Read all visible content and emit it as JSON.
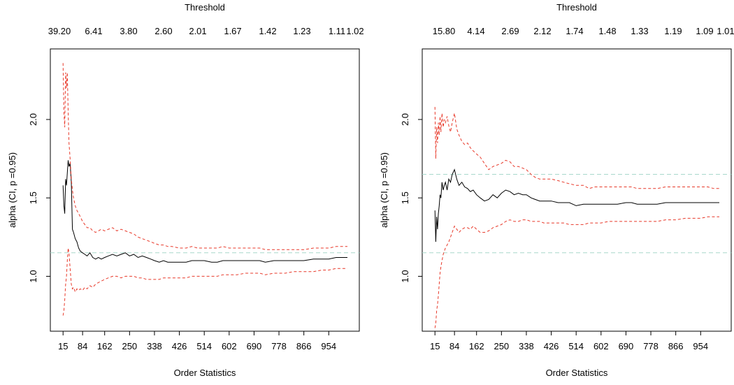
{
  "chart_data": [
    {
      "type": "line",
      "xlabel": "Order Statistics",
      "ylabel": "alpha (CI, p =0.95)",
      "top_axis_title": "Threshold",
      "x_ticks": [
        "15",
        "84",
        "162",
        "250",
        "338",
        "426",
        "514",
        "602",
        "690",
        "778",
        "866",
        "954"
      ],
      "top_ticks": [
        "39.20",
        "6.41",
        "3.80",
        "2.60",
        "2.01",
        "1.67",
        "1.42",
        "1.23",
        "1.11",
        "1.02"
      ],
      "y_ticks": [
        "1.0",
        "1.5",
        "2.0"
      ],
      "xlim": [
        -30,
        1062
      ],
      "ylim": [
        0.65,
        2.45
      ],
      "reference_lines": [
        1.15
      ],
      "series": [
        {
          "role": "estimate",
          "color": "#000000",
          "style": "solid",
          "x": [
            15,
            18,
            21,
            24,
            27,
            30,
            33,
            36,
            40,
            44,
            48,
            52,
            58,
            64,
            70,
            76,
            84,
            92,
            100,
            110,
            120,
            130,
            140,
            150,
            162,
            175,
            190,
            205,
            220,
            235,
            250,
            265,
            280,
            295,
            310,
            325,
            338,
            355,
            370,
            385,
            400,
            426,
            450,
            470,
            490,
            514,
            540,
            560,
            580,
            602,
            630,
            660,
            690,
            710,
            730,
            760,
            778,
            800,
            830,
            866,
            900,
            930,
            954,
            980,
            1000,
            1020
          ],
          "y": [
            1.58,
            1.45,
            1.4,
            1.62,
            1.58,
            1.66,
            1.74,
            1.7,
            1.72,
            1.6,
            1.3,
            1.28,
            1.24,
            1.22,
            1.18,
            1.16,
            1.15,
            1.14,
            1.13,
            1.15,
            1.12,
            1.11,
            1.12,
            1.11,
            1.12,
            1.13,
            1.14,
            1.13,
            1.14,
            1.15,
            1.13,
            1.14,
            1.12,
            1.13,
            1.12,
            1.11,
            1.1,
            1.09,
            1.1,
            1.09,
            1.09,
            1.09,
            1.09,
            1.1,
            1.1,
            1.1,
            1.09,
            1.09,
            1.1,
            1.1,
            1.1,
            1.1,
            1.1,
            1.1,
            1.09,
            1.1,
            1.1,
            1.1,
            1.1,
            1.1,
            1.11,
            1.11,
            1.11,
            1.12,
            1.12,
            1.12
          ]
        },
        {
          "role": "upper_ci",
          "color": "#e8392a",
          "style": "dashed",
          "x": [
            15,
            18,
            21,
            24,
            27,
            30,
            33,
            36,
            40,
            44,
            48,
            52,
            58,
            64,
            70,
            76,
            84,
            92,
            100,
            110,
            120,
            130,
            140,
            150,
            162,
            175,
            190,
            205,
            220,
            235,
            250,
            265,
            280,
            295,
            310,
            325,
            338,
            355,
            370,
            385,
            400,
            426,
            450,
            470,
            490,
            514,
            540,
            560,
            580,
            602,
            630,
            660,
            690,
            710,
            730,
            760,
            778,
            800,
            830,
            866,
            900,
            930,
            954,
            980,
            1000,
            1020
          ],
          "y": [
            2.36,
            2.05,
            1.95,
            2.3,
            2.2,
            2.3,
            2.05,
            1.85,
            1.75,
            1.62,
            1.55,
            1.5,
            1.45,
            1.42,
            1.4,
            1.38,
            1.35,
            1.33,
            1.31,
            1.31,
            1.29,
            1.28,
            1.29,
            1.3,
            1.29,
            1.3,
            1.31,
            1.29,
            1.3,
            1.29,
            1.28,
            1.27,
            1.25,
            1.24,
            1.23,
            1.22,
            1.21,
            1.2,
            1.2,
            1.19,
            1.19,
            1.18,
            1.18,
            1.19,
            1.18,
            1.18,
            1.18,
            1.18,
            1.19,
            1.18,
            1.18,
            1.18,
            1.18,
            1.18,
            1.17,
            1.17,
            1.17,
            1.17,
            1.17,
            1.17,
            1.18,
            1.18,
            1.18,
            1.19,
            1.19,
            1.19
          ]
        },
        {
          "role": "lower_ci",
          "color": "#e8392a",
          "style": "dashed",
          "x": [
            15,
            18,
            21,
            24,
            27,
            30,
            33,
            36,
            40,
            44,
            48,
            52,
            58,
            64,
            70,
            76,
            84,
            92,
            100,
            110,
            120,
            130,
            140,
            150,
            162,
            175,
            190,
            205,
            220,
            235,
            250,
            265,
            280,
            295,
            310,
            325,
            338,
            355,
            370,
            385,
            400,
            426,
            450,
            470,
            490,
            514,
            540,
            560,
            580,
            602,
            630,
            660,
            690,
            710,
            730,
            760,
            778,
            800,
            830,
            866,
            900,
            930,
            954,
            980,
            1000,
            1020
          ],
          "y": [
            0.75,
            0.78,
            0.85,
            0.95,
            1.0,
            1.1,
            1.18,
            1.15,
            1.05,
            0.95,
            0.92,
            0.93,
            0.9,
            0.92,
            0.91,
            0.92,
            0.91,
            0.93,
            0.92,
            0.94,
            0.93,
            0.95,
            0.96,
            0.97,
            0.98,
            0.99,
            1.0,
            1.0,
            0.99,
            1.0,
            1.0,
            1.0,
            0.99,
            0.99,
            0.98,
            0.98,
            0.98,
            0.98,
            0.99,
            0.99,
            0.99,
            0.99,
            0.99,
            1.0,
            1.0,
            1.0,
            1.0,
            1.0,
            1.01,
            1.01,
            1.01,
            1.02,
            1.02,
            1.02,
            1.01,
            1.02,
            1.02,
            1.02,
            1.03,
            1.03,
            1.03,
            1.04,
            1.04,
            1.05,
            1.05,
            1.05
          ]
        }
      ]
    },
    {
      "type": "line",
      "xlabel": "Order Statistics",
      "ylabel": "alpha (CI, p =0.95)",
      "top_axis_title": "Threshold",
      "x_ticks": [
        "15",
        "84",
        "162",
        "250",
        "338",
        "426",
        "514",
        "602",
        "690",
        "778",
        "866",
        "954"
      ],
      "top_ticks": [
        "15.80",
        "4.14",
        "2.69",
        "2.12",
        "1.74",
        "1.48",
        "1.33",
        "1.19",
        "1.09",
        "1.01"
      ],
      "y_ticks": [
        "1.0",
        "1.5",
        "2.0"
      ],
      "xlim": [
        -30,
        1062
      ],
      "ylim": [
        0.65,
        2.45
      ],
      "reference_lines": [
        1.15,
        1.65
      ],
      "series": [
        {
          "role": "estimate",
          "color": "#000000",
          "style": "solid",
          "x": [
            15,
            18,
            21,
            24,
            27,
            30,
            33,
            36,
            40,
            44,
            48,
            52,
            58,
            64,
            70,
            76,
            84,
            92,
            100,
            110,
            120,
            130,
            140,
            150,
            162,
            175,
            190,
            205,
            220,
            235,
            250,
            265,
            280,
            295,
            310,
            325,
            338,
            355,
            370,
            385,
            400,
            426,
            450,
            470,
            490,
            514,
            540,
            560,
            580,
            602,
            630,
            660,
            690,
            710,
            730,
            760,
            778,
            800,
            830,
            866,
            900,
            930,
            954,
            980,
            1000,
            1020
          ],
          "y": [
            1.42,
            1.22,
            1.38,
            1.3,
            1.4,
            1.45,
            1.52,
            1.5,
            1.6,
            1.55,
            1.58,
            1.6,
            1.55,
            1.62,
            1.6,
            1.65,
            1.68,
            1.62,
            1.58,
            1.6,
            1.57,
            1.56,
            1.54,
            1.55,
            1.52,
            1.5,
            1.48,
            1.49,
            1.52,
            1.5,
            1.53,
            1.55,
            1.54,
            1.52,
            1.53,
            1.52,
            1.52,
            1.5,
            1.49,
            1.48,
            1.48,
            1.48,
            1.47,
            1.47,
            1.47,
            1.45,
            1.46,
            1.46,
            1.46,
            1.46,
            1.46,
            1.46,
            1.47,
            1.47,
            1.46,
            1.46,
            1.46,
            1.46,
            1.47,
            1.47,
            1.47,
            1.47,
            1.47,
            1.47,
            1.47,
            1.47
          ]
        },
        {
          "role": "upper_ci",
          "color": "#e8392a",
          "style": "dashed",
          "x": [
            15,
            18,
            21,
            24,
            27,
            30,
            33,
            36,
            40,
            44,
            48,
            52,
            58,
            64,
            70,
            76,
            84,
            92,
            100,
            110,
            120,
            130,
            140,
            150,
            162,
            175,
            190,
            205,
            220,
            235,
            250,
            265,
            280,
            295,
            310,
            325,
            338,
            355,
            370,
            385,
            400,
            426,
            450,
            470,
            490,
            514,
            540,
            560,
            580,
            602,
            630,
            660,
            690,
            710,
            730,
            760,
            778,
            800,
            830,
            866,
            900,
            930,
            954,
            980,
            1000,
            1020
          ],
          "y": [
            2.08,
            1.75,
            1.95,
            1.85,
            1.98,
            1.9,
            2.02,
            1.92,
            2.04,
            1.95,
            2.0,
            1.98,
            2.02,
            1.96,
            1.92,
            1.98,
            2.04,
            1.94,
            1.9,
            1.86,
            1.84,
            1.85,
            1.82,
            1.8,
            1.78,
            1.76,
            1.72,
            1.68,
            1.7,
            1.71,
            1.72,
            1.74,
            1.73,
            1.7,
            1.7,
            1.69,
            1.68,
            1.65,
            1.63,
            1.62,
            1.62,
            1.62,
            1.61,
            1.6,
            1.59,
            1.58,
            1.58,
            1.56,
            1.57,
            1.57,
            1.57,
            1.57,
            1.57,
            1.57,
            1.56,
            1.56,
            1.56,
            1.56,
            1.57,
            1.57,
            1.57,
            1.57,
            1.57,
            1.57,
            1.56,
            1.56
          ]
        },
        {
          "role": "lower_ci",
          "color": "#e8392a",
          "style": "dashed",
          "x": [
            15,
            18,
            21,
            24,
            27,
            30,
            33,
            36,
            40,
            44,
            48,
            52,
            58,
            64,
            70,
            76,
            84,
            92,
            100,
            110,
            120,
            130,
            140,
            150,
            162,
            175,
            190,
            205,
            220,
            235,
            250,
            265,
            280,
            295,
            310,
            325,
            338,
            355,
            370,
            385,
            400,
            426,
            450,
            470,
            490,
            514,
            540,
            560,
            580,
            602,
            630,
            660,
            690,
            710,
            730,
            760,
            778,
            800,
            830,
            866,
            900,
            930,
            954,
            980,
            1000,
            1020
          ],
          "y": [
            0.67,
            0.7,
            0.78,
            0.82,
            0.88,
            0.95,
            1.02,
            1.06,
            1.1,
            1.14,
            1.16,
            1.18,
            1.2,
            1.22,
            1.25,
            1.28,
            1.32,
            1.3,
            1.28,
            1.3,
            1.31,
            1.31,
            1.3,
            1.32,
            1.3,
            1.28,
            1.28,
            1.29,
            1.31,
            1.32,
            1.33,
            1.35,
            1.36,
            1.35,
            1.35,
            1.36,
            1.36,
            1.35,
            1.35,
            1.35,
            1.34,
            1.34,
            1.34,
            1.34,
            1.33,
            1.33,
            1.33,
            1.34,
            1.34,
            1.34,
            1.35,
            1.35,
            1.35,
            1.35,
            1.35,
            1.35,
            1.35,
            1.35,
            1.36,
            1.36,
            1.37,
            1.37,
            1.37,
            1.38,
            1.38,
            1.38
          ]
        }
      ]
    }
  ]
}
